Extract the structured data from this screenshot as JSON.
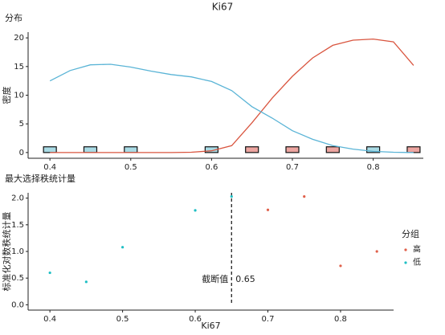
{
  "chart_data": [
    {
      "type": "density",
      "title": "Ki67",
      "panel_title": "分布",
      "y_label": "密度",
      "xlim": [
        0.373,
        0.862
      ],
      "ylim": [
        -1,
        21
      ],
      "xticks": [
        0.4,
        0.5,
        0.6,
        0.7,
        0.8
      ],
      "yticks": [
        0,
        5,
        10,
        15,
        20
      ],
      "series": [
        {
          "name": "高",
          "color": "#d9553f",
          "fill": "#eda5a0",
          "x": [
            0.4,
            0.425,
            0.45,
            0.475,
            0.5,
            0.525,
            0.55,
            0.575,
            0.6,
            0.625,
            0.65,
            0.675,
            0.7,
            0.725,
            0.75,
            0.775,
            0.8,
            0.825,
            0.85
          ],
          "values": [
            0,
            0,
            0,
            0,
            0,
            0,
            0,
            0.05,
            0.3,
            1.2,
            5.2,
            9.5,
            13.3,
            16.5,
            18.7,
            19.6,
            19.8,
            19.3,
            15.2
          ],
          "points": [
            0.65,
            0.7,
            0.75,
            0.85
          ]
        },
        {
          "name": "低",
          "color": "#5ab4d6",
          "fill": "#a9dbe5",
          "x": [
            0.4,
            0.425,
            0.45,
            0.475,
            0.5,
            0.525,
            0.55,
            0.575,
            0.6,
            0.625,
            0.65,
            0.675,
            0.7,
            0.725,
            0.75,
            0.775,
            0.8,
            0.825,
            0.85
          ],
          "values": [
            12.5,
            14.3,
            15.3,
            15.4,
            14.9,
            14.2,
            13.6,
            13.2,
            12.4,
            10.8,
            8.0,
            6.0,
            3.8,
            2.3,
            1.2,
            0.6,
            0.2,
            0.05,
            0
          ],
          "points": [
            0.4,
            0.45,
            0.5,
            0.6,
            0.8
          ]
        }
      ]
    },
    {
      "type": "scatter",
      "panel_title": "最大选择秩统计量",
      "y_label": "标准化对数秩统计量",
      "x_label": "Ki67",
      "xlim": [
        0.37,
        0.873
      ],
      "ylim": [
        -0.1,
        2.1
      ],
      "xticks": [
        0.4,
        0.5,
        0.6,
        0.7,
        0.8
      ],
      "yticks": [
        {
          "value": 0,
          "label": "0.0"
        },
        0.5,
        {
          "value": 1,
          "label": "1.0"
        },
        1.5,
        {
          "value": 2,
          "label": "2.0"
        }
      ],
      "cutoff": 0.65,
      "cutoff_label": "截断值",
      "legend_title": "分组",
      "series": [
        {
          "name": "高",
          "color": "#e0604a",
          "x": [
            0.7,
            0.75,
            0.8,
            0.85
          ],
          "values": [
            1.78,
            2.03,
            0.73,
            1.0
          ]
        },
        {
          "name": "低",
          "color": "#1fbfc4",
          "x": [
            0.4,
            0.45,
            0.5,
            0.6,
            0.65
          ],
          "values": [
            0.6,
            0.43,
            1.08,
            1.77,
            2.03
          ]
        }
      ]
    }
  ]
}
